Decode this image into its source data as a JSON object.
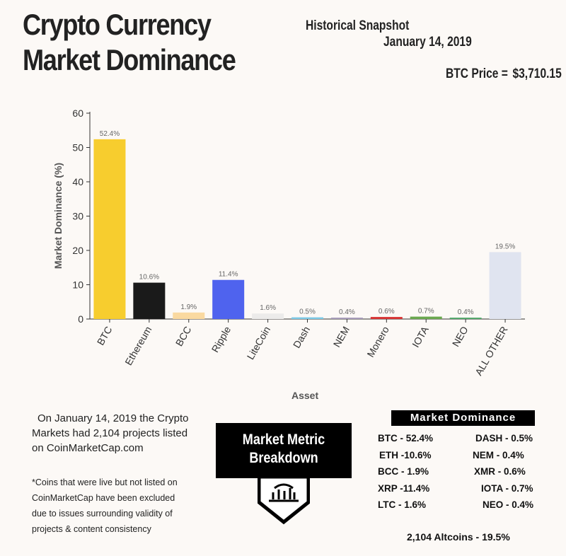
{
  "header": {
    "title_line1": "Crypto Currency",
    "title_line2": "Market Dominance",
    "snapshot_label": "Historical Snapshot",
    "snapshot_date": "January 14, 2019",
    "btc_price_label": "BTC Price =",
    "btc_price_value": "$3,710.15"
  },
  "chart_data": {
    "type": "bar",
    "xlabel": "Asset",
    "ylabel": "Market Dominance (%)",
    "ylim": [
      0,
      60
    ],
    "yticks": [
      0,
      10,
      20,
      30,
      40,
      50,
      60
    ],
    "grid": false,
    "categories": [
      "BTC",
      "Ethereum",
      "BCC",
      "Ripple",
      "LiteCoin",
      "Dash",
      "NEM",
      "Monero",
      "IOTA",
      "NEO",
      "ALL OTHER"
    ],
    "values": [
      52.4,
      10.6,
      1.9,
      11.4,
      1.6,
      0.5,
      0.4,
      0.6,
      0.7,
      0.4,
      19.5
    ],
    "data_labels": [
      "52.4%",
      "10.6%",
      "1.9%",
      "11.4%",
      "1.6%",
      "0.5%",
      "0.4%",
      "0.6%",
      "0.7%",
      "0.4%",
      "19.5%"
    ],
    "colors": [
      "#f7cd2e",
      "#1a1a1a",
      "#fad9a0",
      "#4f63ee",
      "#ecebea",
      "#7ecae6",
      "#a59ab8",
      "#d73434",
      "#6aa84f",
      "#52a86a",
      "#e0e4f0"
    ]
  },
  "notes": {
    "line1": "On January 14, 2019 the Crypto",
    "line2": "Markets had 2,104 projects listed",
    "line3": "on CoinMarketCap.com",
    "footnote1": "*Coins that were live but not listed on",
    "footnote2": "CoinMarketCap have been excluded",
    "footnote3": "due to issues surrounding validity of",
    "footnote4": "projects & content consistency"
  },
  "badge": {
    "line1": "Market Metric",
    "line2": "Breakdown",
    "icon": "bar-chart-icon"
  },
  "dominance": {
    "header": "Market Dominance",
    "left": [
      "BTC - 52.4%",
      "ETH -10.6%",
      "BCC - 1.9%",
      "XRP -11.4%",
      "LTC - 1.6%"
    ],
    "right": [
      "DASH - 0.5%",
      "NEM - 0.4%",
      "XMR - 0.6%",
      "IOTA - 0.7%",
      "NEO - 0.4%"
    ],
    "total": "2,104 Altcoins - 19.5%"
  }
}
